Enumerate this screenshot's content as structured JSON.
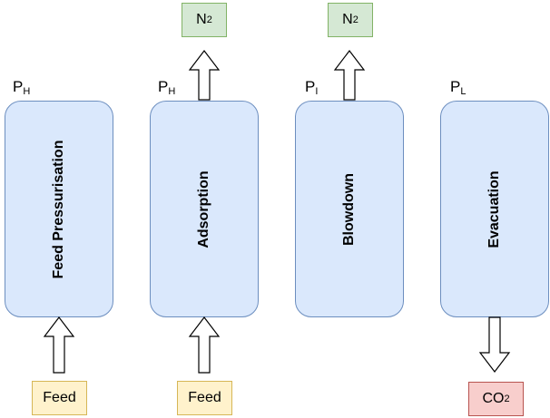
{
  "columns": [
    {
      "label": "Feed Pressurisation",
      "pressure_main": "P",
      "pressure_sub": "H"
    },
    {
      "label": "Adsorption",
      "pressure_main": "P",
      "pressure_sub": "H"
    },
    {
      "label": "Blowdown",
      "pressure_main": "P",
      "pressure_sub": "I"
    },
    {
      "label": "Evacuation",
      "pressure_main": "P",
      "pressure_sub": "L"
    }
  ],
  "outputs": {
    "n2_adsorption": {
      "main": "N",
      "sub": "2"
    },
    "n2_blowdown": {
      "main": "N",
      "sub": "2"
    },
    "co2_evacuation": {
      "main": "CO",
      "sub": "2"
    }
  },
  "inputs": {
    "feed_pressurisation": "Feed",
    "feed_adsorption": "Feed"
  },
  "colors": {
    "column_fill": "#dae8fc",
    "column_stroke": "#6c8ebf",
    "n2_fill": "#d5e8d4",
    "feed_fill": "#fff2cc",
    "co2_fill": "#f8cecc"
  }
}
